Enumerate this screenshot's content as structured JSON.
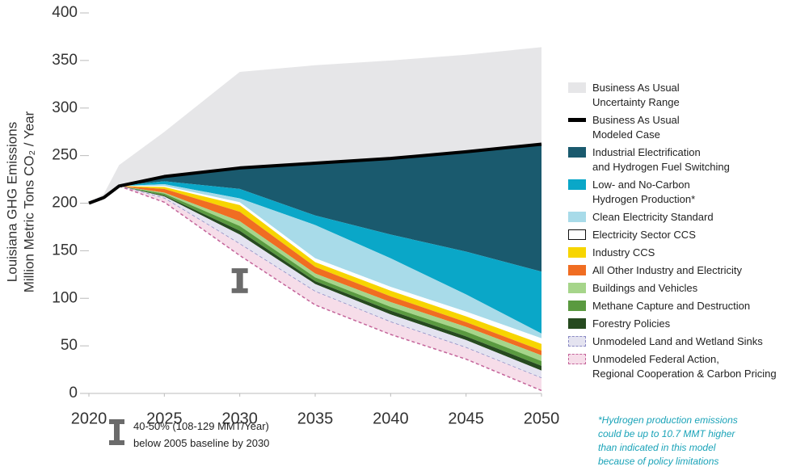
{
  "chart_data": {
    "type": "area",
    "ylabel": [
      "Louisiana GHG Emissions",
      "Million Metric Tons CO₂ / Year"
    ],
    "x": [
      2020,
      2021,
      2022,
      2025,
      2030,
      2035,
      2040,
      2045,
      2050
    ],
    "xlim": [
      2020,
      2050
    ],
    "ylim": [
      0,
      400
    ],
    "xticks": [
      2020,
      2025,
      2030,
      2035,
      2040,
      2045,
      2050
    ],
    "yticks": [
      0,
      50,
      100,
      150,
      200,
      250,
      300,
      350,
      400
    ],
    "series": [
      {
        "name": "Business As Usual\nUncertainty Range",
        "kind": "range",
        "color": "#e6e6e8",
        "values": [
          200,
          210,
          240,
          275,
          338,
          345,
          350,
          356,
          364
        ]
      },
      {
        "name": "Business As Usual\nModeled Case",
        "kind": "line",
        "color": "#000000",
        "values": [
          200,
          206,
          218,
          228,
          237,
          242,
          247,
          254,
          262
        ]
      },
      {
        "name": "Industrial Electrification\nand Hydrogen Fuel Switching",
        "kind": "wedge",
        "color": "#1a5a6e",
        "values": [
          null,
          null,
          0,
          5,
          22,
          55,
          80,
          105,
          134
        ]
      },
      {
        "name": "Low- and No-Carbon\nHydrogen Production*",
        "kind": "wedge",
        "color": "#0aa7c8",
        "values": [
          null,
          null,
          0,
          3,
          10,
          10,
          25,
          45,
          65
        ]
      },
      {
        "name": "Clean Electricity Standard",
        "kind": "wedge",
        "color": "#a8dbe9",
        "values": [
          null,
          null,
          0,
          2,
          4,
          35,
          30,
          18,
          5
        ]
      },
      {
        "name": "Electricity Sector CCS",
        "kind": "wedge",
        "color": "#ffffff",
        "outline": "#111111",
        "values": [
          null,
          null,
          0,
          1,
          3,
          4,
          4,
          5,
          6
        ]
      },
      {
        "name": "Industry CCS",
        "kind": "wedge",
        "color": "#f7d500",
        "values": [
          null,
          null,
          0,
          2,
          7,
          5,
          6,
          6,
          7
        ]
      },
      {
        "name": "All Other Industry and Electricity",
        "kind": "wedge",
        "color": "#f06d22",
        "values": [
          null,
          null,
          0,
          4,
          10,
          7,
          6,
          5,
          5
        ]
      },
      {
        "name": "Buildings and Vehicles",
        "kind": "wedge",
        "color": "#a6d58a",
        "values": [
          null,
          null,
          0,
          1,
          5,
          4,
          5,
          5,
          6
        ]
      },
      {
        "name": "Methane Capture and Destruction",
        "kind": "wedge",
        "color": "#5a9a40",
        "values": [
          null,
          null,
          0,
          2,
          5,
          4,
          4,
          5,
          5
        ]
      },
      {
        "name": "Forestry Policies",
        "kind": "wedge",
        "color": "#264a1f",
        "values": [
          null,
          null,
          0,
          1,
          4,
          3,
          4,
          4,
          5
        ]
      },
      {
        "name": "Unmodeled Land and Wetland Sinks",
        "kind": "wedge",
        "color": "#e4e3f0",
        "outline": "#8a8ac4",
        "dashed": true,
        "values": [
          null,
          null,
          0,
          2,
          10,
          8,
          8,
          8,
          8
        ]
      },
      {
        "name": "Unmodeled Federal Action,\nRegional Cooperation & Carbon Pricing",
        "kind": "wedge",
        "color": "#f6dde9",
        "outline": "#c4649a",
        "dashed": true,
        "values": [
          null,
          null,
          0,
          4,
          12,
          14,
          13,
          12,
          13
        ]
      }
    ],
    "target": {
      "x": 2030,
      "low": 108,
      "high": 129,
      "color": "#6b6b6b",
      "text": [
        "40-50% (108-129 MMT/Year)",
        "below 2005 baseline by 2030"
      ]
    },
    "footnote": [
      "*Hydrogen production emissions",
      "could be up to 10.7 MMT higher",
      "than indicated in this model",
      "because of policy limitations"
    ]
  }
}
